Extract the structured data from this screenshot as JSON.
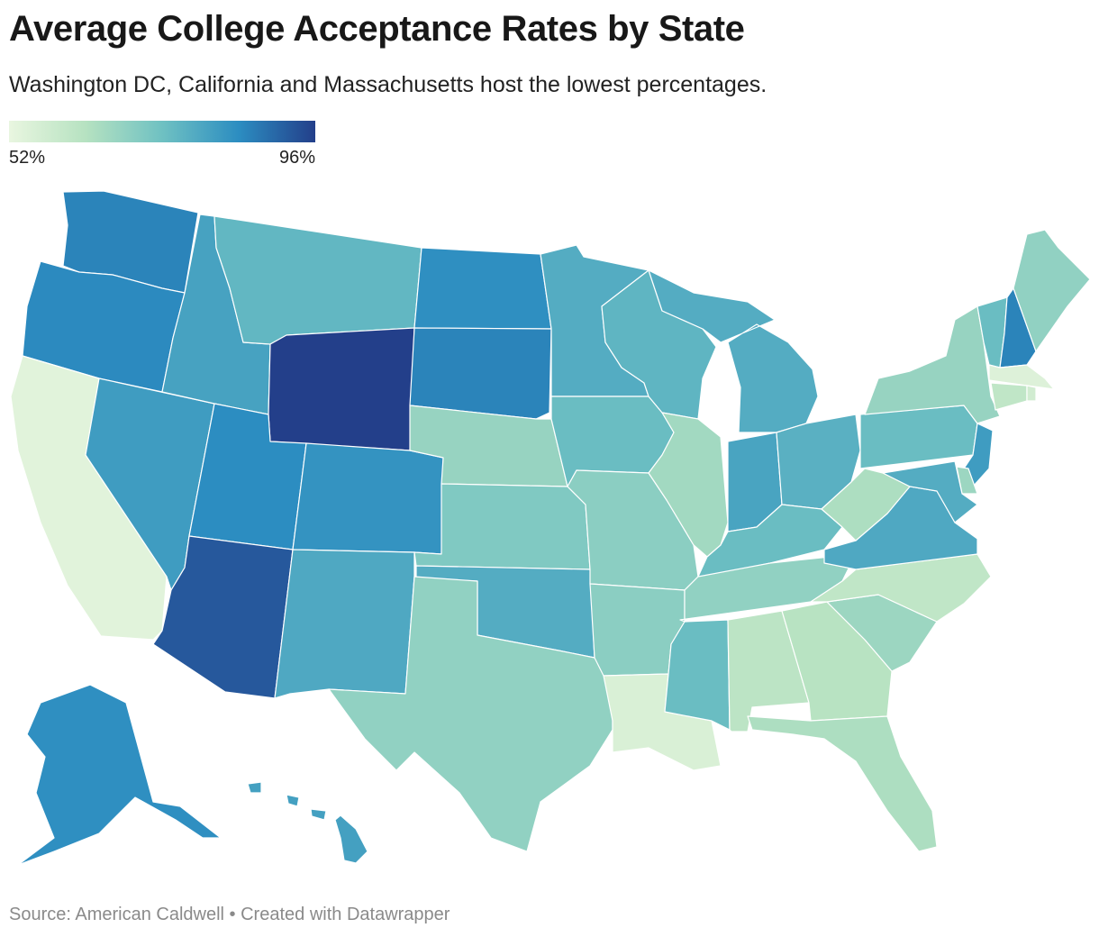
{
  "header": {
    "title": "Average College Acceptance Rates by State",
    "subtitle": "Washington DC, California and Massachusetts host the lowest percentages."
  },
  "legend": {
    "min_label": "52%",
    "max_label": "96%",
    "min_value": 52,
    "max_value": 96,
    "colors": [
      "#e9f6e0",
      "#b6e2c1",
      "#6fc1c2",
      "#2c8dc1",
      "#233f8a"
    ]
  },
  "states": [
    {
      "code": "WA",
      "name": "Washington",
      "level": 0.78
    },
    {
      "code": "OR",
      "name": "Oregon",
      "level": 0.76
    },
    {
      "code": "CA",
      "name": "California",
      "level": 0.04
    },
    {
      "code": "NV",
      "name": "Nevada",
      "level": 0.68
    },
    {
      "code": "ID",
      "name": "Idaho",
      "level": 0.65
    },
    {
      "code": "MT",
      "name": "Montana",
      "level": 0.55
    },
    {
      "code": "WY",
      "name": "Wyoming",
      "level": 1.0
    },
    {
      "code": "UT",
      "name": "Utah",
      "level": 0.75
    },
    {
      "code": "AZ",
      "name": "Arizona",
      "level": 0.92
    },
    {
      "code": "CO",
      "name": "Colorado",
      "level": 0.72
    },
    {
      "code": "NM",
      "name": "New Mexico",
      "level": 0.62
    },
    {
      "code": "ND",
      "name": "North Dakota",
      "level": 0.74
    },
    {
      "code": "SD",
      "name": "South Dakota",
      "level": 0.78
    },
    {
      "code": "NE",
      "name": "Nebraska",
      "level": 0.36
    },
    {
      "code": "KS",
      "name": "Kansas",
      "level": 0.44
    },
    {
      "code": "OK",
      "name": "Oklahoma",
      "level": 0.6
    },
    {
      "code": "TX",
      "name": "Texas",
      "level": 0.38
    },
    {
      "code": "MN",
      "name": "Minnesota",
      "level": 0.6
    },
    {
      "code": "IA",
      "name": "Iowa",
      "level": 0.52
    },
    {
      "code": "MO",
      "name": "Missouri",
      "level": 0.4
    },
    {
      "code": "AR",
      "name": "Arkansas",
      "level": 0.4
    },
    {
      "code": "LA",
      "name": "Louisiana",
      "level": 0.08
    },
    {
      "code": "WI",
      "name": "Wisconsin",
      "level": 0.56
    },
    {
      "code": "IL",
      "name": "Illinois",
      "level": 0.32
    },
    {
      "code": "MI",
      "name": "Michigan",
      "level": 0.6
    },
    {
      "code": "IN",
      "name": "Indiana",
      "level": 0.64
    },
    {
      "code": "OH",
      "name": "Ohio",
      "level": 0.58
    },
    {
      "code": "KY",
      "name": "Kentucky",
      "level": 0.52
    },
    {
      "code": "TN",
      "name": "Tennessee",
      "level": 0.38
    },
    {
      "code": "MS",
      "name": "Mississippi",
      "level": 0.52
    },
    {
      "code": "AL",
      "name": "Alabama",
      "level": 0.22
    },
    {
      "code": "GA",
      "name": "Georgia",
      "level": 0.24
    },
    {
      "code": "FL",
      "name": "Florida",
      "level": 0.28
    },
    {
      "code": "SC",
      "name": "South Carolina",
      "level": 0.34
    },
    {
      "code": "NC",
      "name": "North Carolina",
      "level": 0.2
    },
    {
      "code": "VA",
      "name": "Virginia",
      "level": 0.62
    },
    {
      "code": "WV",
      "name": "West Virginia",
      "level": 0.28
    },
    {
      "code": "PA",
      "name": "Pennsylvania",
      "level": 0.52
    },
    {
      "code": "NY",
      "name": "New York",
      "level": 0.36
    },
    {
      "code": "VT",
      "name": "Vermont",
      "level": 0.52
    },
    {
      "code": "NH",
      "name": "New Hampshire",
      "level": 0.78
    },
    {
      "code": "ME",
      "name": "Maine",
      "level": 0.38
    },
    {
      "code": "MA",
      "name": "Massachusetts",
      "level": 0.06
    },
    {
      "code": "CT",
      "name": "Connecticut",
      "level": 0.2
    },
    {
      "code": "RI",
      "name": "Rhode Island",
      "level": 0.12
    },
    {
      "code": "NJ",
      "name": "New Jersey",
      "level": 0.68
    },
    {
      "code": "DE",
      "name": "Delaware",
      "level": 0.34
    },
    {
      "code": "MD",
      "name": "Maryland",
      "level": 0.6
    },
    {
      "code": "AK",
      "name": "Alaska",
      "level": 0.74
    },
    {
      "code": "HI",
      "name": "Hawaii",
      "level": 0.66
    }
  ],
  "footer": {
    "source": "Source: American Caldwell • Created with Datawrapper"
  }
}
